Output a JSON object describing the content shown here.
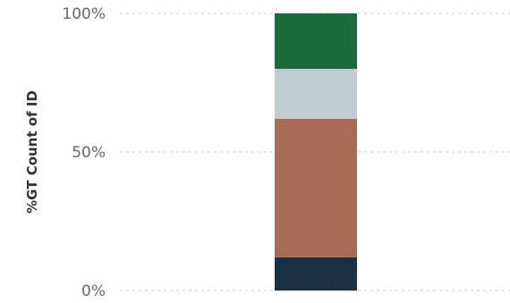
{
  "chart_data": {
    "type": "bar",
    "stacked": true,
    "categories": [
      ""
    ],
    "ylabel": "%GT Count of ID",
    "ylim": [
      0,
      100
    ],
    "yticks": [
      0,
      50,
      100
    ],
    "ytick_labels": [
      "0%",
      "50%",
      "100%"
    ],
    "grid": true,
    "legend": "none",
    "series": [
      {
        "values": [
          12
        ],
        "color": "#1b3143"
      },
      {
        "values": [
          50
        ],
        "color": "#a86b55"
      },
      {
        "values": [
          18
        ],
        "color": "#bfcdd0"
      },
      {
        "values": [
          20
        ],
        "color": "#1a6b3b"
      }
    ]
  }
}
